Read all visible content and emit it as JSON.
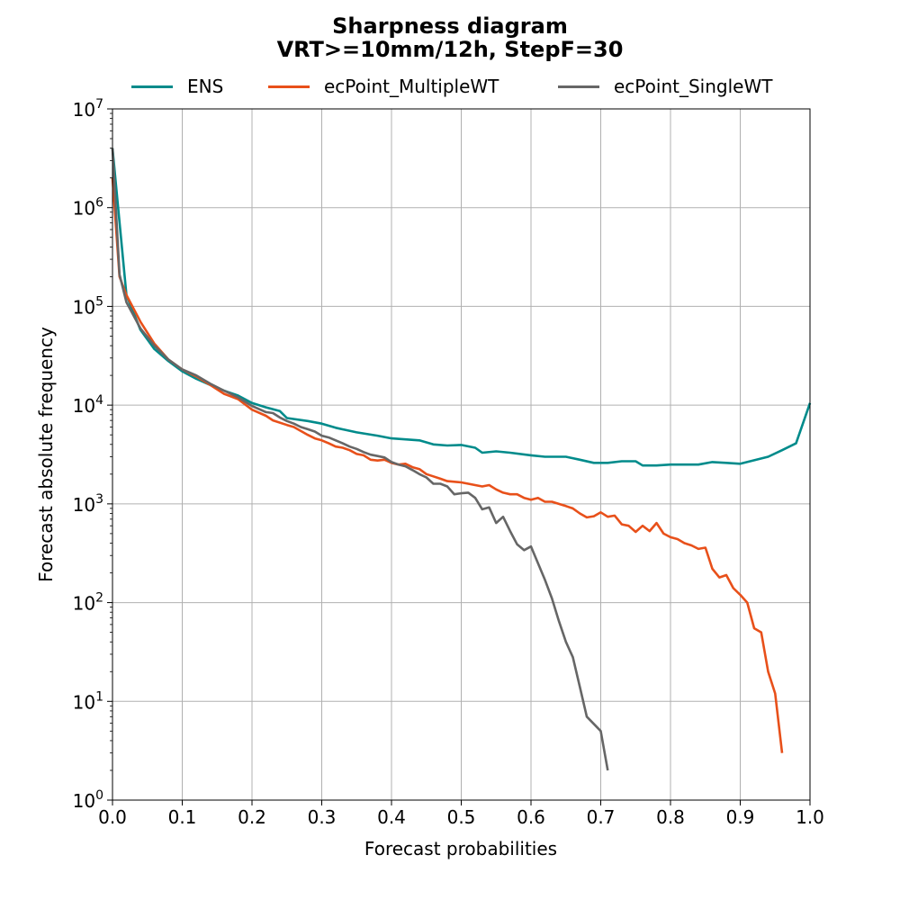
{
  "chart_data": {
    "type": "line",
    "title": "Sharpness diagram",
    "subtitle": "VRT>=10mm/12h, StepF=30",
    "xlabel": "Forecast probabilities",
    "ylabel": "Forecast absolute frequency",
    "xlim": [
      0.0,
      1.0
    ],
    "ylim": [
      1,
      10000000
    ],
    "yscale": "log",
    "grid": true,
    "legend_position": "top",
    "x_ticks": [
      "0.0",
      "0.1",
      "0.2",
      "0.3",
      "0.4",
      "0.5",
      "0.6",
      "0.7",
      "0.8",
      "0.9",
      "1.0"
    ],
    "y_ticks": [
      {
        "base": "10",
        "exp": "0"
      },
      {
        "base": "10",
        "exp": "1"
      },
      {
        "base": "10",
        "exp": "2"
      },
      {
        "base": "10",
        "exp": "3"
      },
      {
        "base": "10",
        "exp": "4"
      },
      {
        "base": "10",
        "exp": "5"
      },
      {
        "base": "10",
        "exp": "6"
      },
      {
        "base": "10",
        "exp": "7"
      }
    ],
    "series": [
      {
        "name": "ENS",
        "color": "#008b8b",
        "points": [
          [
            0.0,
            4000000
          ],
          [
            0.02,
            130000
          ],
          [
            0.04,
            58000
          ],
          [
            0.06,
            37000
          ],
          [
            0.08,
            28000
          ],
          [
            0.1,
            22000
          ],
          [
            0.12,
            18500
          ],
          [
            0.14,
            16000
          ],
          [
            0.16,
            14000
          ],
          [
            0.18,
            12500
          ],
          [
            0.2,
            10500
          ],
          [
            0.22,
            9500
          ],
          [
            0.24,
            8700
          ],
          [
            0.25,
            7400
          ],
          [
            0.28,
            6900
          ],
          [
            0.3,
            6500
          ],
          [
            0.32,
            5900
          ],
          [
            0.35,
            5300
          ],
          [
            0.38,
            4900
          ],
          [
            0.4,
            4600
          ],
          [
            0.42,
            4500
          ],
          [
            0.44,
            4400
          ],
          [
            0.46,
            4000
          ],
          [
            0.48,
            3900
          ],
          [
            0.5,
            3950
          ],
          [
            0.52,
            3700
          ],
          [
            0.53,
            3300
          ],
          [
            0.55,
            3400
          ],
          [
            0.57,
            3300
          ],
          [
            0.6,
            3100
          ],
          [
            0.62,
            3000
          ],
          [
            0.65,
            3000
          ],
          [
            0.67,
            2800
          ],
          [
            0.69,
            2600
          ],
          [
            0.71,
            2600
          ],
          [
            0.73,
            2700
          ],
          [
            0.75,
            2700
          ],
          [
            0.76,
            2450
          ],
          [
            0.78,
            2450
          ],
          [
            0.8,
            2500
          ],
          [
            0.82,
            2500
          ],
          [
            0.84,
            2500
          ],
          [
            0.86,
            2650
          ],
          [
            0.88,
            2600
          ],
          [
            0.9,
            2550
          ],
          [
            0.94,
            3000
          ],
          [
            0.96,
            3500
          ],
          [
            0.98,
            4100
          ],
          [
            1.0,
            10500
          ]
        ]
      },
      {
        "name": "ecPoint_MultipleWT",
        "color": "#e8501a",
        "points": [
          [
            0.0,
            2000000
          ],
          [
            0.01,
            200000
          ],
          [
            0.02,
            130000
          ],
          [
            0.04,
            70000
          ],
          [
            0.06,
            42000
          ],
          [
            0.08,
            29000
          ],
          [
            0.1,
            23000
          ],
          [
            0.12,
            19500
          ],
          [
            0.14,
            16000
          ],
          [
            0.16,
            13000
          ],
          [
            0.18,
            11500
          ],
          [
            0.2,
            9000
          ],
          [
            0.22,
            7800
          ],
          [
            0.23,
            7000
          ],
          [
            0.25,
            6300
          ],
          [
            0.26,
            6000
          ],
          [
            0.28,
            5000
          ],
          [
            0.29,
            4600
          ],
          [
            0.3,
            4400
          ],
          [
            0.31,
            4100
          ],
          [
            0.32,
            3800
          ],
          [
            0.33,
            3700
          ],
          [
            0.34,
            3500
          ],
          [
            0.35,
            3200
          ],
          [
            0.36,
            3100
          ],
          [
            0.37,
            2800
          ],
          [
            0.38,
            2750
          ],
          [
            0.39,
            2800
          ],
          [
            0.4,
            2600
          ],
          [
            0.41,
            2500
          ],
          [
            0.42,
            2550
          ],
          [
            0.43,
            2350
          ],
          [
            0.44,
            2250
          ],
          [
            0.45,
            2000
          ],
          [
            0.46,
            1900
          ],
          [
            0.47,
            1800
          ],
          [
            0.48,
            1700
          ],
          [
            0.5,
            1650
          ],
          [
            0.51,
            1600
          ],
          [
            0.52,
            1550
          ],
          [
            0.53,
            1500
          ],
          [
            0.54,
            1550
          ],
          [
            0.55,
            1400
          ],
          [
            0.56,
            1300
          ],
          [
            0.57,
            1250
          ],
          [
            0.58,
            1250
          ],
          [
            0.59,
            1150
          ],
          [
            0.6,
            1100
          ],
          [
            0.61,
            1150
          ],
          [
            0.62,
            1050
          ],
          [
            0.63,
            1050
          ],
          [
            0.64,
            1000
          ],
          [
            0.65,
            950
          ],
          [
            0.66,
            900
          ],
          [
            0.67,
            800
          ],
          [
            0.68,
            730
          ],
          [
            0.69,
            750
          ],
          [
            0.7,
            820
          ],
          [
            0.71,
            740
          ],
          [
            0.72,
            760
          ],
          [
            0.73,
            620
          ],
          [
            0.74,
            600
          ],
          [
            0.75,
            520
          ],
          [
            0.76,
            600
          ],
          [
            0.77,
            530
          ],
          [
            0.78,
            640
          ],
          [
            0.79,
            500
          ],
          [
            0.8,
            460
          ],
          [
            0.81,
            440
          ],
          [
            0.82,
            400
          ],
          [
            0.83,
            380
          ],
          [
            0.84,
            350
          ],
          [
            0.85,
            360
          ],
          [
            0.86,
            220
          ],
          [
            0.87,
            180
          ],
          [
            0.88,
            190
          ],
          [
            0.89,
            140
          ],
          [
            0.9,
            120
          ],
          [
            0.91,
            100
          ],
          [
            0.92,
            55
          ],
          [
            0.93,
            50
          ],
          [
            0.94,
            20
          ],
          [
            0.95,
            12
          ],
          [
            0.96,
            3
          ]
        ]
      },
      {
        "name": "ecPoint_SingleWT",
        "color": "#666666",
        "points": [
          [
            0.0,
            4000000
          ],
          [
            0.01,
            210000
          ],
          [
            0.02,
            110000
          ],
          [
            0.04,
            60000
          ],
          [
            0.06,
            40000
          ],
          [
            0.08,
            29000
          ],
          [
            0.1,
            23000
          ],
          [
            0.12,
            20000
          ],
          [
            0.14,
            16500
          ],
          [
            0.16,
            14000
          ],
          [
            0.18,
            12000
          ],
          [
            0.2,
            9800
          ],
          [
            0.22,
            8500
          ],
          [
            0.23,
            8300
          ],
          [
            0.24,
            7500
          ],
          [
            0.25,
            6900
          ],
          [
            0.26,
            6500
          ],
          [
            0.27,
            6000
          ],
          [
            0.28,
            5700
          ],
          [
            0.29,
            5400
          ],
          [
            0.3,
            4900
          ],
          [
            0.31,
            4700
          ],
          [
            0.32,
            4400
          ],
          [
            0.33,
            4100
          ],
          [
            0.34,
            3800
          ],
          [
            0.35,
            3600
          ],
          [
            0.36,
            3350
          ],
          [
            0.37,
            3150
          ],
          [
            0.38,
            3050
          ],
          [
            0.39,
            2950
          ],
          [
            0.4,
            2650
          ],
          [
            0.41,
            2500
          ],
          [
            0.42,
            2400
          ],
          [
            0.43,
            2200
          ],
          [
            0.44,
            2000
          ],
          [
            0.45,
            1850
          ],
          [
            0.46,
            1600
          ],
          [
            0.47,
            1600
          ],
          [
            0.48,
            1500
          ],
          [
            0.49,
            1250
          ],
          [
            0.5,
            1280
          ],
          [
            0.51,
            1300
          ],
          [
            0.52,
            1150
          ],
          [
            0.53,
            880
          ],
          [
            0.54,
            920
          ],
          [
            0.55,
            640
          ],
          [
            0.56,
            740
          ],
          [
            0.57,
            530
          ],
          [
            0.58,
            390
          ],
          [
            0.59,
            340
          ],
          [
            0.6,
            370
          ],
          [
            0.61,
            250
          ],
          [
            0.62,
            170
          ],
          [
            0.63,
            110
          ],
          [
            0.64,
            65
          ],
          [
            0.65,
            40
          ],
          [
            0.66,
            28
          ],
          [
            0.67,
            14
          ],
          [
            0.68,
            7
          ],
          [
            0.7,
            5
          ],
          [
            0.71,
            2
          ]
        ]
      }
    ]
  }
}
